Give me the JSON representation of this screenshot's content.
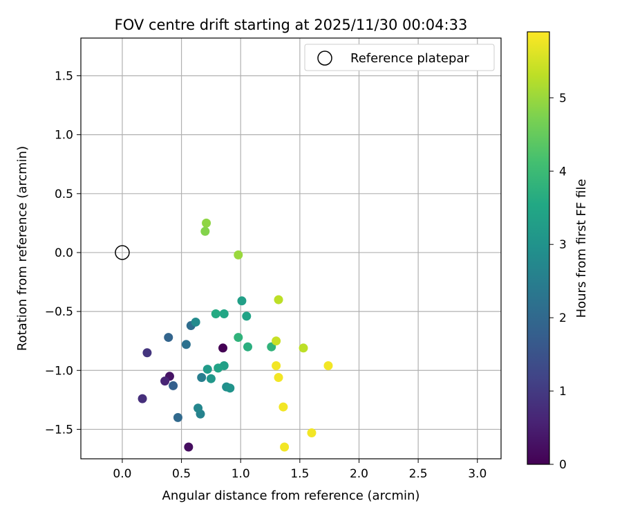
{
  "chart_data": {
    "type": "scatter",
    "title": "FOV centre drift starting at 2025/11/30 00:04:33",
    "xlabel": "Angular distance from reference (arcmin)",
    "ylabel": "Rotation from reference (arcmin)",
    "xlim": [
      -0.35,
      3.2
    ],
    "ylim": [
      -1.75,
      1.82
    ],
    "xticks": [
      0.0,
      0.5,
      1.0,
      1.5,
      2.0,
      2.5,
      3.0
    ],
    "xtick_labels": [
      "0.0",
      "0.5",
      "1.0",
      "1.5",
      "2.0",
      "2.5",
      "3.0"
    ],
    "yticks": [
      -1.5,
      -1.0,
      -0.5,
      0.0,
      0.5,
      1.0,
      1.5
    ],
    "ytick_labels": [
      "−1.5",
      "−1.0",
      "−0.5",
      "0.0",
      "0.5",
      "1.0",
      "1.5"
    ],
    "grid": true,
    "legend": {
      "position": "top-right",
      "entries": [
        "Reference platepar"
      ]
    },
    "reference": {
      "x": 0.0,
      "y": 0.0,
      "label": "Reference platepar"
    },
    "colorbar": {
      "label": "Hours from first FF file",
      "colormap": "viridis",
      "range": [
        0,
        5.9
      ],
      "ticks": [
        0,
        1,
        2,
        3,
        4,
        5
      ],
      "tick_labels": [
        "0",
        "1",
        "2",
        "3",
        "4",
        "5"
      ]
    },
    "points": [
      {
        "x": 0.85,
        "y": -0.81,
        "hours": 0.0
      },
      {
        "x": 0.56,
        "y": -1.65,
        "hours": 0.2
      },
      {
        "x": 0.4,
        "y": -1.05,
        "hours": 0.3
      },
      {
        "x": 0.36,
        "y": -1.09,
        "hours": 0.6
      },
      {
        "x": 0.17,
        "y": -1.24,
        "hours": 0.8
      },
      {
        "x": 0.21,
        "y": -0.85,
        "hours": 0.9
      },
      {
        "x": 0.43,
        "y": -1.13,
        "hours": 1.8
      },
      {
        "x": 0.39,
        "y": -0.72,
        "hours": 1.9
      },
      {
        "x": 0.47,
        "y": -1.4,
        "hours": 2.0
      },
      {
        "x": 0.58,
        "y": -0.62,
        "hours": 2.1
      },
      {
        "x": 0.54,
        "y": -0.78,
        "hours": 2.2
      },
      {
        "x": 0.67,
        "y": -1.06,
        "hours": 2.5
      },
      {
        "x": 0.66,
        "y": -1.37,
        "hours": 2.6
      },
      {
        "x": 0.64,
        "y": -1.32,
        "hours": 2.7
      },
      {
        "x": 0.62,
        "y": -0.59,
        "hours": 2.8
      },
      {
        "x": 0.88,
        "y": -1.14,
        "hours": 2.9
      },
      {
        "x": 0.91,
        "y": -1.15,
        "hours": 3.0
      },
      {
        "x": 0.75,
        "y": -1.07,
        "hours": 3.1
      },
      {
        "x": 0.72,
        "y": -0.99,
        "hours": 3.2
      },
      {
        "x": 0.86,
        "y": -0.96,
        "hours": 3.3
      },
      {
        "x": 0.81,
        "y": -0.98,
        "hours": 3.4
      },
      {
        "x": 1.01,
        "y": -0.41,
        "hours": 3.3
      },
      {
        "x": 1.05,
        "y": -0.54,
        "hours": 3.4
      },
      {
        "x": 0.86,
        "y": -0.52,
        "hours": 3.5
      },
      {
        "x": 0.79,
        "y": -0.52,
        "hours": 3.6
      },
      {
        "x": 1.06,
        "y": -0.8,
        "hours": 3.7
      },
      {
        "x": 0.98,
        "y": -0.72,
        "hours": 3.8
      },
      {
        "x": 1.26,
        "y": -0.8,
        "hours": 3.8
      },
      {
        "x": 0.7,
        "y": 0.18,
        "hours": 4.8
      },
      {
        "x": 0.71,
        "y": 0.25,
        "hours": 4.9
      },
      {
        "x": 0.98,
        "y": -0.02,
        "hours": 5.0
      },
      {
        "x": 1.32,
        "y": -0.4,
        "hours": 5.3
      },
      {
        "x": 1.53,
        "y": -0.81,
        "hours": 5.3
      },
      {
        "x": 1.3,
        "y": -0.75,
        "hours": 5.4
      },
      {
        "x": 1.3,
        "y": -0.96,
        "hours": 5.8
      },
      {
        "x": 1.32,
        "y": -1.06,
        "hours": 5.8
      },
      {
        "x": 1.74,
        "y": -0.96,
        "hours": 5.8
      },
      {
        "x": 1.36,
        "y": -1.31,
        "hours": 5.8
      },
      {
        "x": 1.6,
        "y": -1.53,
        "hours": 5.8
      },
      {
        "x": 1.37,
        "y": -1.65,
        "hours": 5.8
      }
    ]
  }
}
